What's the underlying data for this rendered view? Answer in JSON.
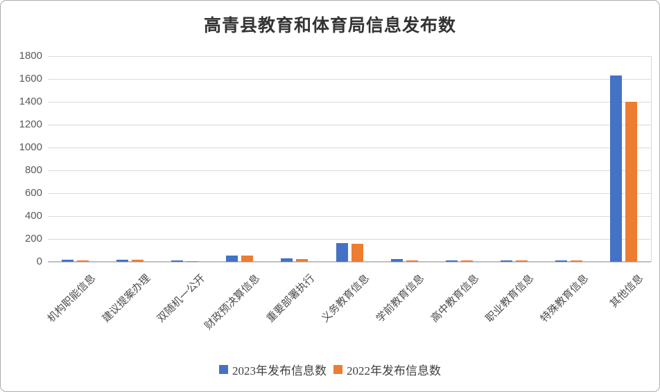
{
  "chart": {
    "title": "高青县教育和体育局信息发布数",
    "colors": {
      "series_2023": "#4472C4",
      "series_2022": "#ED7D31",
      "gridline": "#D9D9D9",
      "axis_line": "#BFBFBF",
      "tick_text": "#595959",
      "category_text": "#4D4D4D",
      "title_text": "#333333",
      "legend_text": "#404040",
      "frame_border": "#ABABAB",
      "background": "#FFFFFF"
    }
  },
  "chart_data": {
    "type": "bar",
    "title": "高青县教育和体育局信息发布数",
    "categories": [
      "机构职能信息",
      "建议提案办理",
      "双随机一公开",
      "财政预决算信息",
      "重要部署执行",
      "义务教育信息",
      "学前教育信息",
      "高中教育信息",
      "职业教育信息",
      "特殊教育信息",
      "其他信息"
    ],
    "series": [
      {
        "name": "2023年发布信息数",
        "color": "#4472C4",
        "values": [
          20,
          20,
          12,
          55,
          28,
          165,
          25,
          15,
          15,
          14,
          1630
        ]
      },
      {
        "name": "2022年发布信息数",
        "color": "#ED7D31",
        "values": [
          12,
          18,
          8,
          52,
          24,
          160,
          15,
          12,
          12,
          10,
          1400
        ]
      }
    ],
    "xlabel": "",
    "ylabel": "",
    "ylim": [
      0,
      1800
    ],
    "ytick_step": 200,
    "yticks": [
      0,
      200,
      400,
      600,
      800,
      1000,
      1200,
      1400,
      1600,
      1800
    ],
    "grid": true,
    "grid_orientation": "horizontal",
    "legend_position": "bottom",
    "xlabel_rotation_deg": 45
  }
}
